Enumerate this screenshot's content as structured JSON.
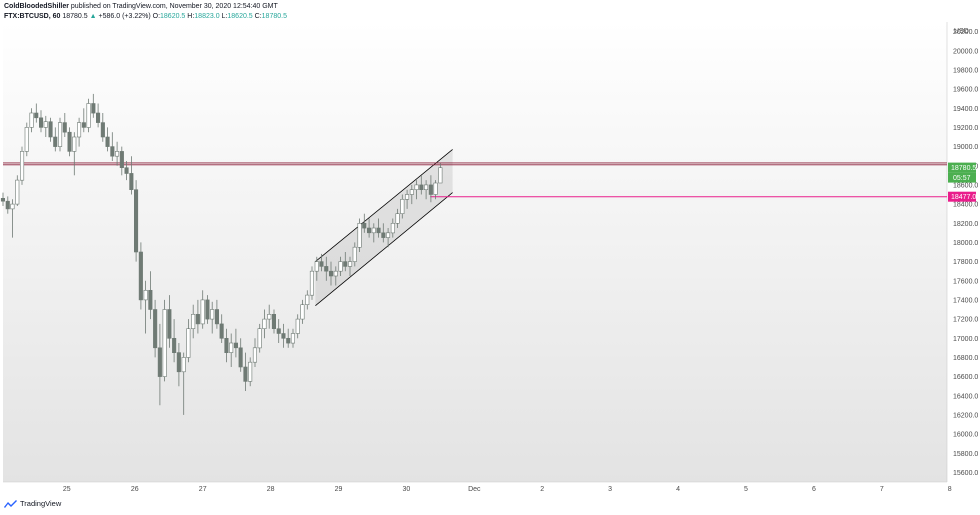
{
  "header": {
    "author": "ColdBloodedShiller",
    "published": "published on TradingView.com, November 30, 2020 12:54:40 GMT",
    "symbol": "FTX:BTCUSD, 60",
    "last": "18780.5",
    "change": "+586.0 (+3.22%)",
    "o_label": "O:",
    "o_value": "18620.5",
    "h_label": "H:",
    "h_value": "18823.0",
    "l_label": "L:",
    "l_value": "18620.5",
    "c_label": "C:",
    "c_value": "18780.5"
  },
  "footer": {
    "brand": "TradingView"
  },
  "colors": {
    "up": "#6f7a74",
    "down": "#6f7a74",
    "resistance": "#8b1f3a",
    "support": "#e91e8c",
    "price_label": "#4caf50",
    "channel": "#000000"
  },
  "chart_data": {
    "type": "candlestick",
    "currency": "USD",
    "ylim": [
      15500,
      20300
    ],
    "y_ticks": [
      15600,
      15800,
      16000,
      16200,
      16400,
      16600,
      16800,
      17000,
      17200,
      17400,
      17600,
      17800,
      18000,
      18200,
      18400,
      18600,
      18800,
      19000,
      19200,
      19400,
      19600,
      19800,
      20000,
      20200
    ],
    "y_tick_labels": [
      "15600.0",
      "15800.0",
      "16000.0",
      "16200.0",
      "16400.0",
      "16600.0",
      "16800.0",
      "17000.0",
      "17200.0",
      "17400.0",
      "17600.0",
      "17800.0",
      "18000.0",
      "18200.0",
      "18400.0",
      "18600.0",
      "18800.0",
      "19000.0",
      "19200.0",
      "19400.0",
      "19600.0",
      "19800.0",
      "20000.0",
      "20200.0"
    ],
    "x_ticks": [
      "25",
      "26",
      "27",
      "28",
      "29",
      "30",
      "Dec",
      "2",
      "3",
      "4",
      "5",
      "6",
      "7",
      "8"
    ],
    "x_range_days": [
      24.06,
      37.96
    ],
    "current_price": "18780.5",
    "countdown": "05:57",
    "horizontal_lines": [
      {
        "name": "resistance",
        "price": 18830
      },
      {
        "name": "resistance-inner",
        "price": 18810
      },
      {
        "name": "support",
        "price": 18477.0,
        "label": "18477.0",
        "from_day": 30.35
      }
    ],
    "channel": {
      "upper": [
        [
          28.66,
          17800
        ],
        [
          30.68,
          18970
        ]
      ],
      "lower": [
        [
          28.66,
          17340
        ],
        [
          30.68,
          18520
        ]
      ]
    },
    "candles": [
      [
        24.06,
        18460,
        18520,
        18380,
        18430
      ],
      [
        24.13,
        18430,
        18480,
        18300,
        18350
      ],
      [
        24.2,
        18350,
        18450,
        18050,
        18400
      ],
      [
        24.27,
        18400,
        18700,
        18380,
        18650
      ],
      [
        24.34,
        18650,
        19000,
        18600,
        18950
      ],
      [
        24.41,
        18950,
        19250,
        18900,
        19200
      ],
      [
        24.48,
        19200,
        19400,
        19150,
        19350
      ],
      [
        24.55,
        19350,
        19450,
        19250,
        19300
      ],
      [
        24.62,
        19300,
        19380,
        19150,
        19200
      ],
      [
        24.69,
        19200,
        19320,
        19100,
        19260
      ],
      [
        24.76,
        19260,
        19300,
        19050,
        19100
      ],
      [
        24.83,
        19100,
        19200,
        18950,
        19000
      ],
      [
        24.9,
        19000,
        19300,
        18950,
        19250
      ],
      [
        24.97,
        19250,
        19350,
        19100,
        19150
      ],
      [
        25.04,
        19150,
        19200,
        18900,
        18950
      ],
      [
        25.11,
        18950,
        19150,
        18700,
        19100
      ],
      [
        25.18,
        19100,
        19300,
        19000,
        19250
      ],
      [
        25.25,
        19250,
        19400,
        19150,
        19200
      ],
      [
        25.32,
        19200,
        19500,
        19150,
        19450
      ],
      [
        25.39,
        19450,
        19550,
        19300,
        19350
      ],
      [
        25.46,
        19350,
        19450,
        19200,
        19250
      ],
      [
        25.53,
        19250,
        19350,
        19050,
        19100
      ],
      [
        25.6,
        19100,
        19200,
        18950,
        19000
      ],
      [
        25.67,
        19000,
        19150,
        18850,
        18900
      ],
      [
        25.74,
        18900,
        19050,
        18800,
        18950
      ],
      [
        25.81,
        18950,
        19000,
        18700,
        18780
      ],
      [
        25.88,
        18780,
        18850,
        18650,
        18720
      ],
      [
        25.95,
        18720,
        18900,
        18500,
        18550
      ],
      [
        26.02,
        18550,
        18650,
        17800,
        17900
      ],
      [
        26.09,
        17900,
        18000,
        17300,
        17400
      ],
      [
        26.16,
        17400,
        17600,
        17050,
        17500
      ],
      [
        26.23,
        17500,
        17700,
        17200,
        17300
      ],
      [
        26.3,
        17300,
        17400,
        16800,
        16900
      ],
      [
        26.37,
        16900,
        17150,
        16300,
        16600
      ],
      [
        26.44,
        16600,
        17400,
        16550,
        17300
      ],
      [
        26.51,
        17300,
        17450,
        16900,
        17000
      ],
      [
        26.58,
        17000,
        17200,
        16750,
        16850
      ],
      [
        26.65,
        16850,
        16950,
        16500,
        16650
      ],
      [
        26.72,
        16650,
        16850,
        16200,
        16800
      ],
      [
        26.79,
        16800,
        17200,
        16750,
        17100
      ],
      [
        26.86,
        17100,
        17350,
        17000,
        17250
      ],
      [
        26.93,
        17250,
        17400,
        17050,
        17150
      ],
      [
        27.0,
        17150,
        17500,
        17100,
        17400
      ],
      [
        27.07,
        17400,
        17450,
        17150,
        17200
      ],
      [
        27.14,
        17200,
        17380,
        17050,
        17300
      ],
      [
        27.21,
        17300,
        17400,
        17100,
        17150
      ],
      [
        27.28,
        17150,
        17250,
        16950,
        17000
      ],
      [
        27.35,
        17000,
        17100,
        16750,
        16850
      ],
      [
        27.42,
        16850,
        17050,
        16700,
        16950
      ],
      [
        27.49,
        16950,
        17100,
        16800,
        16900
      ],
      [
        27.56,
        16900,
        17000,
        16650,
        16700
      ],
      [
        27.63,
        16700,
        16850,
        16450,
        16550
      ],
      [
        27.7,
        16550,
        16800,
        16500,
        16750
      ],
      [
        27.77,
        16750,
        17000,
        16700,
        16900
      ],
      [
        27.84,
        16900,
        17150,
        16850,
        17100
      ],
      [
        27.91,
        17100,
        17300,
        17000,
        17200
      ],
      [
        27.98,
        17200,
        17350,
        17100,
        17250
      ],
      [
        28.05,
        17250,
        17300,
        17050,
        17100
      ],
      [
        28.12,
        17100,
        17200,
        16950,
        17050
      ],
      [
        28.19,
        17050,
        17150,
        16900,
        17000
      ],
      [
        28.26,
        17000,
        17100,
        16900,
        16950
      ],
      [
        28.33,
        16950,
        17100,
        16900,
        17050
      ],
      [
        28.4,
        17050,
        17250,
        17000,
        17200
      ],
      [
        28.47,
        17200,
        17400,
        17150,
        17350
      ],
      [
        28.54,
        17350,
        17500,
        17300,
        17450
      ],
      [
        28.61,
        17450,
        17750,
        17400,
        17700
      ],
      [
        28.68,
        17700,
        17850,
        17600,
        17800
      ],
      [
        28.75,
        17800,
        17880,
        17700,
        17750
      ],
      [
        28.82,
        17750,
        17850,
        17600,
        17700
      ],
      [
        28.89,
        17700,
        17800,
        17550,
        17650
      ],
      [
        28.96,
        17650,
        17750,
        17550,
        17700
      ],
      [
        29.03,
        17700,
        17850,
        17650,
        17800
      ],
      [
        29.1,
        17800,
        17900,
        17700,
        17750
      ],
      [
        29.17,
        17750,
        17850,
        17650,
        17800
      ],
      [
        29.24,
        17800,
        18000,
        17750,
        17950
      ],
      [
        29.31,
        17950,
        18250,
        17900,
        18200
      ],
      [
        29.38,
        18200,
        18300,
        18100,
        18150
      ],
      [
        29.45,
        18150,
        18250,
        18050,
        18100
      ],
      [
        29.52,
        18100,
        18200,
        18000,
        18150
      ],
      [
        29.59,
        18150,
        18250,
        18050,
        18100
      ],
      [
        29.66,
        18100,
        18200,
        18000,
        18050
      ],
      [
        29.73,
        18050,
        18150,
        17950,
        18100
      ],
      [
        29.8,
        18100,
        18250,
        18050,
        18200
      ],
      [
        29.87,
        18200,
        18350,
        18150,
        18300
      ],
      [
        29.94,
        18300,
        18500,
        18250,
        18450
      ],
      [
        30.01,
        18450,
        18550,
        18350,
        18500
      ],
      [
        30.08,
        18500,
        18600,
        18400,
        18550
      ],
      [
        30.15,
        18550,
        18650,
        18450,
        18600
      ],
      [
        30.22,
        18600,
        18700,
        18500,
        18550
      ],
      [
        30.29,
        18550,
        18650,
        18450,
        18600
      ],
      [
        30.36,
        18600,
        18700,
        18420,
        18500
      ],
      [
        30.43,
        18500,
        18650,
        18450,
        18620
      ],
      [
        30.5,
        18620,
        18823,
        18620,
        18780
      ]
    ]
  }
}
